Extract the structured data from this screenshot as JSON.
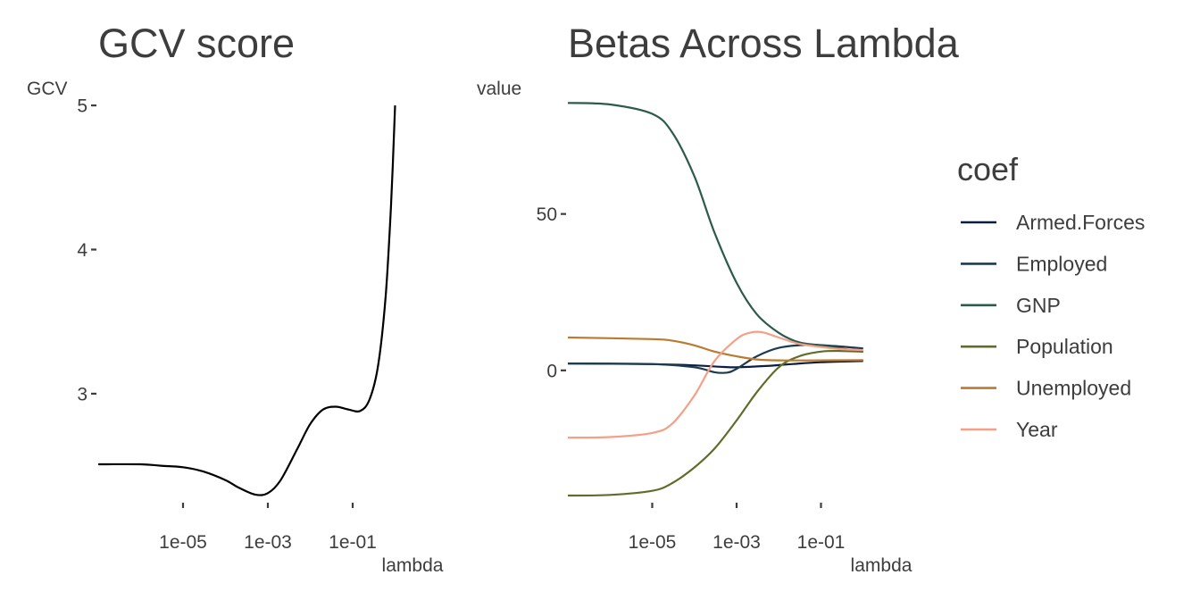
{
  "chart_data": [
    {
      "type": "line",
      "title": "GCV score",
      "xlabel": "lambda",
      "ylabel": "GCV",
      "x_scale": "log10",
      "x_ticks": [
        {
          "value": 1e-05,
          "label": "1e-05"
        },
        {
          "value": 0.001,
          "label": "1e-03"
        },
        {
          "value": 0.1,
          "label": "1e-01"
        }
      ],
      "y_ticks": [
        {
          "value": 3,
          "label": "3"
        },
        {
          "value": 4,
          "label": "4"
        },
        {
          "value": 5,
          "label": "5"
        }
      ],
      "xlim": [
        1e-07,
        10
      ],
      "ylim": [
        2.25,
        5.05
      ],
      "grid": false,
      "color": "#000000",
      "series": [
        {
          "x": [
            1e-07,
            1e-06,
            3e-06,
            1e-05,
            3e-05,
            0.0001,
            0.0002,
            0.0005,
            0.001,
            0.002,
            0.005,
            0.01,
            0.02,
            0.04,
            0.08,
            0.15,
            0.25,
            0.4,
            0.6,
            0.8,
            1.0
          ],
          "y": [
            2.51,
            2.51,
            2.5,
            2.49,
            2.46,
            2.4,
            2.35,
            2.3,
            2.31,
            2.4,
            2.62,
            2.79,
            2.89,
            2.91,
            2.89,
            2.88,
            2.96,
            3.2,
            3.68,
            4.3,
            5.0
          ]
        }
      ]
    },
    {
      "type": "line",
      "title": "Betas Across Lambda",
      "xlabel": "lambda",
      "ylabel": "value",
      "x_scale": "log10",
      "x_ticks": [
        {
          "value": 1e-05,
          "label": "1e-05"
        },
        {
          "value": 0.001,
          "label": "1e-03"
        },
        {
          "value": 0.1,
          "label": "1e-01"
        }
      ],
      "y_ticks": [
        {
          "value": 0,
          "label": "0"
        },
        {
          "value": 50,
          "label": "50"
        }
      ],
      "xlim": [
        1e-07,
        10
      ],
      "ylim": [
        -42,
        87
      ],
      "grid": false,
      "legend": {
        "title": "coef",
        "position": "right"
      },
      "series": [
        {
          "name": "Armed.Forces",
          "color": "#0c1d45",
          "x": [
            1e-07,
            1e-05,
            0.0001,
            0.0005,
            0.001,
            0.005,
            0.02,
            0.1,
            1.0
          ],
          "y": [
            2.2,
            2.0,
            1.6,
            1.1,
            1.0,
            1.4,
            2.0,
            2.6,
            3.0
          ]
        },
        {
          "name": "Employed",
          "color": "#1d3b4e",
          "x": [
            1e-07,
            1e-05,
            0.0001,
            0.0003,
            0.0006,
            0.001,
            0.003,
            0.01,
            0.05,
            0.2,
            1.0
          ],
          "y": [
            2.2,
            2.0,
            1.0,
            -0.6,
            -0.7,
            0.5,
            4.5,
            7.2,
            8.2,
            7.8,
            7.0
          ]
        },
        {
          "name": "GNP",
          "color": "#2c5a4c",
          "x": [
            1e-07,
            1e-06,
            1e-05,
            3e-05,
            0.0001,
            0.0003,
            0.001,
            0.003,
            0.01,
            0.03,
            0.1,
            0.3,
            1.0
          ],
          "y": [
            85.5,
            85.0,
            82.0,
            76.0,
            62.0,
            44.0,
            28.0,
            18.0,
            12.0,
            9.0,
            8.0,
            7.0,
            6.0
          ]
        },
        {
          "name": "Population",
          "color": "#5e6e2a",
          "x": [
            1e-07,
            1e-06,
            1e-05,
            3e-05,
            0.0001,
            0.0003,
            0.001,
            0.003,
            0.01,
            0.03,
            0.1,
            0.3,
            1.0
          ],
          "y": [
            -40.0,
            -39.8,
            -38.5,
            -36.0,
            -31.0,
            -25.0,
            -16.0,
            -7.0,
            1.0,
            4.5,
            6.0,
            6.2,
            6.0
          ]
        },
        {
          "name": "Unemployed",
          "color": "#bb7a30",
          "x": [
            1e-07,
            1e-05,
            3e-05,
            0.0001,
            0.0003,
            0.001,
            0.003,
            0.01,
            0.1,
            1.0
          ],
          "y": [
            10.5,
            10.0,
            9.5,
            8.0,
            6.0,
            4.5,
            3.5,
            3.2,
            3.2,
            3.3
          ]
        },
        {
          "name": "Year",
          "color": "#f59f86",
          "x": [
            1e-07,
            1e-06,
            1e-05,
            3e-05,
            0.0001,
            0.0003,
            0.001,
            0.002,
            0.004,
            0.01,
            0.03,
            0.1,
            0.3,
            1.0
          ],
          "y": [
            -21.5,
            -21.3,
            -20.0,
            -17.0,
            -8.0,
            3.0,
            10.0,
            12.0,
            12.2,
            10.5,
            8.5,
            7.5,
            6.8,
            6.5
          ]
        }
      ]
    }
  ]
}
